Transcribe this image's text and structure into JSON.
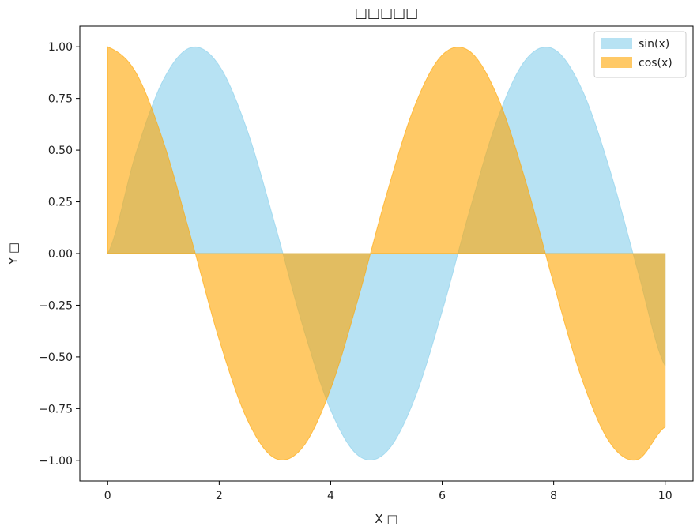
{
  "chart_data": {
    "type": "area",
    "title": "□□□□□",
    "xlabel": "X □",
    "ylabel": "Y □",
    "xlim": [
      -0.5,
      10.5
    ],
    "ylim": [
      -1.1,
      1.1
    ],
    "xticks": [
      0,
      2,
      4,
      6,
      8,
      10
    ],
    "yticks": [
      -1.0,
      -0.75,
      -0.5,
      -0.25,
      0.0,
      0.25,
      0.5,
      0.75,
      1.0
    ],
    "xtick_labels": [
      "0",
      "2",
      "4",
      "6",
      "8",
      "10"
    ],
    "ytick_labels": [
      "−1.00",
      "−0.75",
      "−0.50",
      "−0.25",
      "0.00",
      "0.25",
      "0.50",
      "0.75",
      "1.00"
    ],
    "grid": false,
    "legend_position": "top-right",
    "series": [
      {
        "name": "sin(x)",
        "color": "#87CEEB",
        "opacity": 0.6,
        "x": [
          0,
          0.5,
          1,
          1.5,
          2,
          2.5,
          3,
          3.5,
          4,
          4.5,
          5,
          5.5,
          6,
          6.5,
          7,
          7.5,
          8,
          8.5,
          9,
          9.5,
          10
        ],
        "values": [
          0.0,
          0.479,
          0.841,
          0.997,
          0.909,
          0.598,
          0.141,
          -0.351,
          -0.757,
          -0.978,
          -0.959,
          -0.706,
          -0.279,
          0.215,
          0.657,
          0.938,
          0.989,
          0.798,
          0.412,
          -0.075,
          -0.544
        ]
      },
      {
        "name": "cos(x)",
        "color": "#FFA500",
        "opacity": 0.6,
        "x": [
          0,
          0.5,
          1,
          1.5,
          2,
          2.5,
          3,
          3.5,
          4,
          4.5,
          5,
          5.5,
          6,
          6.5,
          7,
          7.5,
          8,
          8.5,
          9,
          9.5,
          10
        ],
        "values": [
          1.0,
          0.878,
          0.54,
          0.071,
          -0.416,
          -0.801,
          -0.99,
          -0.936,
          -0.654,
          -0.211,
          0.284,
          0.709,
          0.96,
          0.977,
          0.754,
          0.347,
          -0.146,
          -0.602,
          -0.911,
          -0.997,
          -0.839
        ]
      }
    ]
  }
}
